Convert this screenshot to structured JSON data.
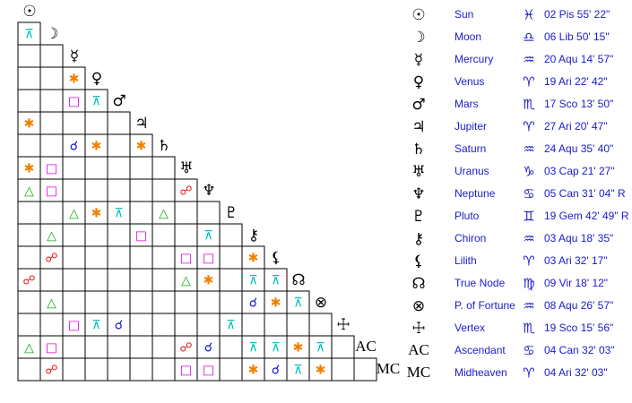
{
  "planets": [
    {
      "glyph": "☉",
      "name": "Sun",
      "sign": "♓",
      "position": "02 Pis 55' 22\""
    },
    {
      "glyph": "☽",
      "name": "Moon",
      "sign": "♎",
      "position": "06 Lib 50' 15\""
    },
    {
      "glyph": "☿",
      "name": "Mercury",
      "sign": "♒",
      "position": "20 Aqu 14' 57\""
    },
    {
      "glyph": "♀",
      "name": "Venus",
      "sign": "♈",
      "position": "19 Ari 22' 42\""
    },
    {
      "glyph": "♂",
      "name": "Mars",
      "sign": "♏",
      "position": "17 Sco 13' 50\""
    },
    {
      "glyph": "♃",
      "name": "Jupiter",
      "sign": "♈",
      "position": "27 Ari 20' 47\""
    },
    {
      "glyph": "♄",
      "name": "Saturn",
      "sign": "♒",
      "position": "24 Aqu 35' 40\""
    },
    {
      "glyph": "♅",
      "name": "Uranus",
      "sign": "♑",
      "position": "03 Cap 21' 27\""
    },
    {
      "glyph": "♆",
      "name": "Neptune",
      "sign": "♋",
      "position": "05 Can 31' 04\" R"
    },
    {
      "glyph": "♇",
      "name": "Pluto",
      "sign": "♊",
      "position": "19 Gem 42' 49\" R"
    },
    {
      "glyph": "⚷",
      "name": "Chiron",
      "sign": "♒",
      "position": "03 Aqu 18' 35\""
    },
    {
      "glyph": "⚸",
      "name": "Lilith",
      "sign": "♈",
      "position": "03 Ari 32' 17\""
    },
    {
      "glyph": "☊",
      "name": "True Node",
      "sign": "♍",
      "position": "09 Vir 18' 12\""
    },
    {
      "glyph": "⊗",
      "name": "P. of Fortune",
      "sign": "♒",
      "position": "08 Aqu 26' 57\""
    },
    {
      "glyph": "☩",
      "name": "Vertex",
      "sign": "♏",
      "position": "19 Sco 15' 56\""
    },
    {
      "glyph": "AC",
      "name": "Ascendant",
      "sign": "♋",
      "position": "04 Can 32' 03\""
    },
    {
      "glyph": "MC",
      "name": "Midheaven",
      "sign": "♈",
      "position": "04 Ari 32' 03\""
    }
  ],
  "aspect_grid": {
    "rows": [
      [
        "⊼"
      ],
      [
        null,
        null
      ],
      [
        null,
        null,
        "✱"
      ],
      [
        null,
        null,
        "□",
        "⊼"
      ],
      [
        "✱",
        null,
        null,
        null,
        null
      ],
      [
        null,
        null,
        "☌",
        "✱",
        null,
        "✱"
      ],
      [
        "✱",
        "□",
        null,
        null,
        null,
        null,
        null
      ],
      [
        "△",
        "□",
        null,
        null,
        null,
        null,
        null,
        "☍"
      ],
      [
        null,
        null,
        "△",
        "✱",
        "⊼",
        null,
        "△",
        null,
        null
      ],
      [
        null,
        "△",
        null,
        null,
        null,
        "□",
        null,
        null,
        "⊼",
        null
      ],
      [
        null,
        "☍",
        null,
        null,
        null,
        null,
        null,
        "□",
        "□",
        null,
        "✱"
      ],
      [
        "☍",
        null,
        null,
        null,
        null,
        null,
        null,
        "△",
        "✱",
        null,
        "⊼",
        "⊼"
      ],
      [
        null,
        "△",
        null,
        null,
        null,
        null,
        null,
        null,
        null,
        null,
        "☌",
        "✱",
        "⊼"
      ],
      [
        null,
        null,
        "□",
        "⊼",
        "☌",
        null,
        null,
        null,
        null,
        "⊼",
        null,
        null,
        null,
        null
      ],
      [
        "△",
        "□",
        null,
        null,
        null,
        null,
        null,
        "☍",
        "☌",
        null,
        "⊼",
        "⊼",
        "✱",
        "⊼",
        null
      ],
      [
        null,
        "☍",
        null,
        null,
        null,
        null,
        null,
        "□",
        "□",
        null,
        "✱",
        "☌",
        "⊼",
        "✱",
        null,
        null
      ]
    ]
  },
  "aspect_colors": {
    "☍": "#e02020",
    "△": "#10b010",
    "□": "#e000e0",
    "✱": "#f08000",
    "⊼": "#00c0c0",
    "☌": "#1010d0"
  }
}
